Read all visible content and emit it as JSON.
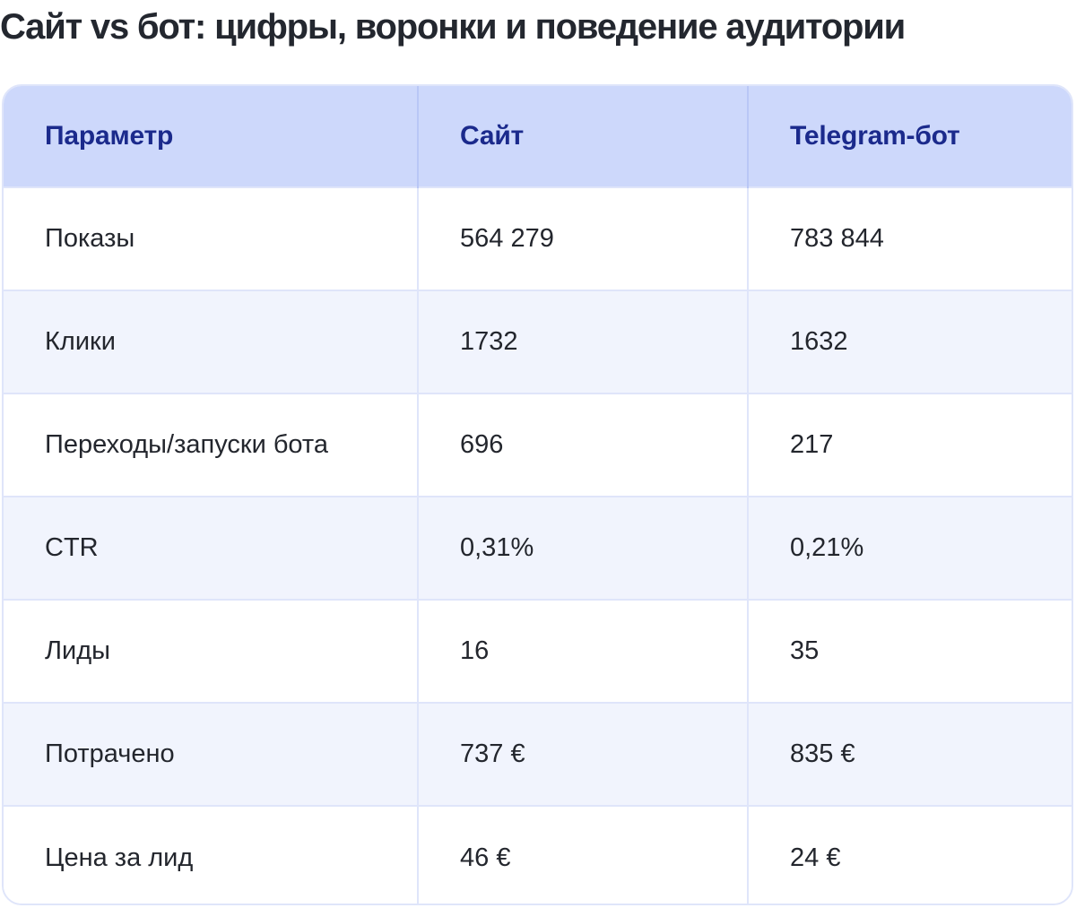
{
  "title": "Сайт vs бот: цифры, воронки и поведение аудитории",
  "table": {
    "headers": [
      "Параметр",
      "Сайт",
      "Telegram-бот"
    ],
    "rows": [
      [
        "Показы",
        "564 279",
        "783 844"
      ],
      [
        "Клики",
        "1732",
        "1632"
      ],
      [
        "Переходы/запуски бота",
        "696",
        "217"
      ],
      [
        "CTR",
        "0,31%",
        "0,21%"
      ],
      [
        "Лиды",
        "16",
        "35"
      ],
      [
        "Потрачено",
        "737 €",
        "835 €"
      ],
      [
        "Цена за лид",
        "46 €",
        "24 €"
      ]
    ]
  },
  "colors": {
    "header_bg": "#cdd8fb",
    "header_text": "#1b2a8c",
    "row_alt_bg": "#f1f4fd",
    "border": "#dfe5fa",
    "title_text": "#23272f"
  }
}
